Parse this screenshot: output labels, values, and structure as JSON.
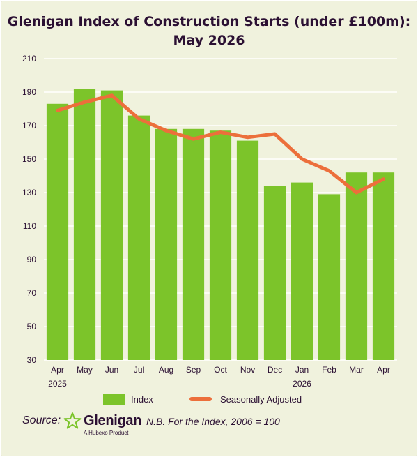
{
  "title_line1": "Glenigan Index of Construction Starts (under £100m):",
  "title_line2": "May 2026",
  "footer": {
    "source_label": "Source:",
    "brand_name": "Glenigan",
    "brand_sub": "A Hubexo Product",
    "note": "N.B. For the Index, 2006 = 100"
  },
  "colors": {
    "background": "#f0f2dd",
    "bar": "#7cc42a",
    "line": "#ec6f3b",
    "grid": "#ffffff",
    "text": "#2b1033"
  },
  "chart_data": {
    "type": "bar",
    "categories": [
      "Apr",
      "May",
      "Jun",
      "Jul",
      "Aug",
      "Sep",
      "Oct",
      "Nov",
      "Dec",
      "Jan",
      "Feb",
      "Mar",
      "Apr"
    ],
    "year_labels": [
      {
        "index": 0,
        "label": "2025"
      },
      {
        "index": 9,
        "label": "2026"
      }
    ],
    "series": [
      {
        "name": "Index",
        "type": "bar",
        "values": [
          183,
          192,
          191,
          176,
          168,
          168,
          167,
          161,
          134,
          136,
          129,
          142,
          142
        ]
      },
      {
        "name": "Seasonally Adjusted",
        "type": "line",
        "values": [
          179,
          184,
          188,
          174,
          167,
          162,
          166,
          163,
          165,
          150,
          143,
          130,
          138
        ]
      }
    ],
    "yticks": [
      30,
      50,
      70,
      90,
      110,
      130,
      150,
      170,
      190,
      210
    ],
    "ylim": [
      30,
      210
    ],
    "grid": true,
    "legend_position": "bottom"
  }
}
